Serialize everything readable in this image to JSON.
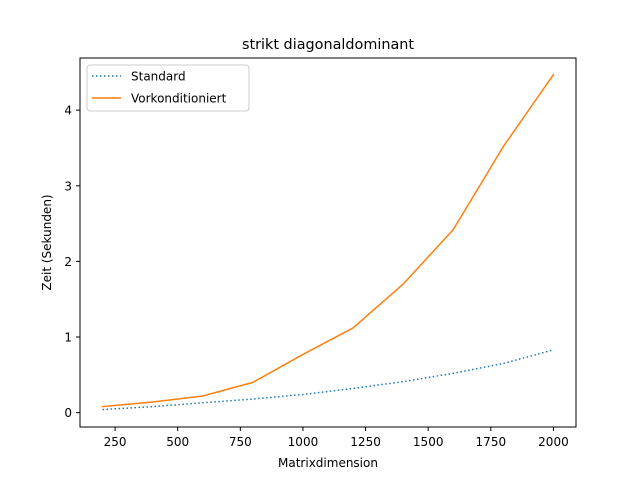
{
  "chart_data": {
    "type": "line",
    "title": "strikt diagonaldominant",
    "xlabel": "Matrixdimension",
    "ylabel": "Zeit (Sekunden)",
    "xlim": [
      110,
      2090
    ],
    "ylim": [
      -0.19,
      4.69
    ],
    "xticks": [
      250,
      500,
      750,
      1000,
      1250,
      1500,
      1750,
      2000
    ],
    "yticks": [
      0,
      1,
      2,
      3,
      4
    ],
    "grid": false,
    "legend": "top-left",
    "x": [
      200,
      400,
      600,
      800,
      1000,
      1200,
      1400,
      1600,
      1800,
      2000
    ],
    "series": [
      {
        "name": "Standard",
        "color": "#1f77b4",
        "style": "dotted",
        "values": [
          0.04,
          0.08,
          0.13,
          0.18,
          0.24,
          0.32,
          0.41,
          0.52,
          0.65,
          0.83
        ]
      },
      {
        "name": "Vorkonditioniert",
        "color": "#ff7f0e",
        "style": "solid",
        "values": [
          0.08,
          0.14,
          0.22,
          0.4,
          0.77,
          1.12,
          1.7,
          2.42,
          3.52,
          4.47
        ]
      }
    ]
  }
}
